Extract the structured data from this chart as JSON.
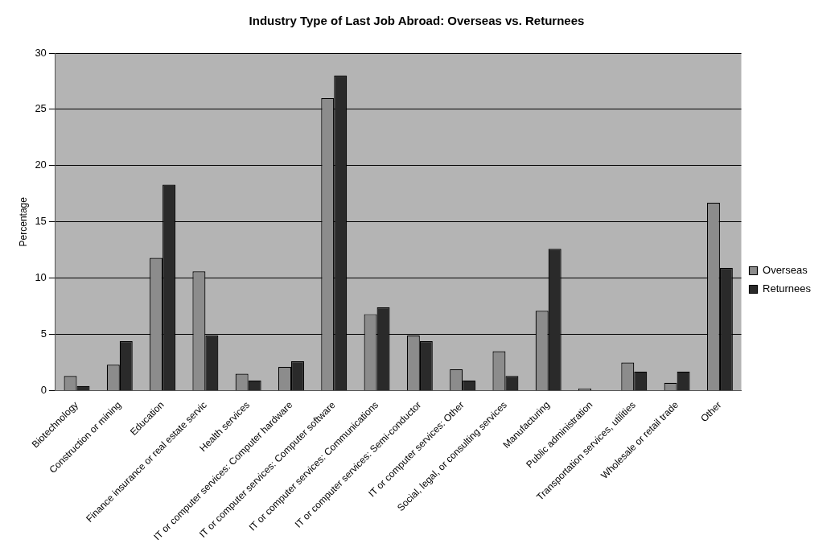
{
  "chart_data": {
    "type": "bar",
    "title": "Industry Type of Last Job Abroad: Overseas vs. Returnees",
    "ylabel": "Percentage",
    "categories": [
      "Biotechnology",
      "Construction or mining",
      "Education",
      "Finance insurance or real estate servic",
      "Health services",
      "IT or computer services: Computer hardware",
      "IT or computer services: Computer software",
      "IT or computer services: Communications",
      "IT or computer services: Semi-conductor",
      "IT or computer services: Other",
      "Social, legal, or consulting services",
      "Manufacturing",
      "Public administration",
      "Transportation services, utilities",
      "Wholesale or retail trade",
      "Other"
    ],
    "series": [
      {
        "name": "Overseas",
        "color": "#8c8c8c",
        "values": [
          1.3,
          2.3,
          11.8,
          10.6,
          1.5,
          2.1,
          26,
          6.8,
          4.9,
          1.9,
          3.5,
          7.1,
          0.2,
          2.5,
          0.7,
          16.7
        ]
      },
      {
        "name": "Returnees",
        "color": "#2a2a2a",
        "values": [
          0.4,
          4.4,
          18.3,
          4.9,
          0.9,
          2.6,
          28,
          7.4,
          4.4,
          0.9,
          1.3,
          12.6,
          null,
          1.7,
          1.7,
          10.9
        ]
      }
    ],
    "ylim": [
      0,
      30
    ],
    "yticks": [
      0,
      5,
      10,
      15,
      20,
      25,
      30
    ],
    "grid": "y",
    "legend": "right"
  }
}
